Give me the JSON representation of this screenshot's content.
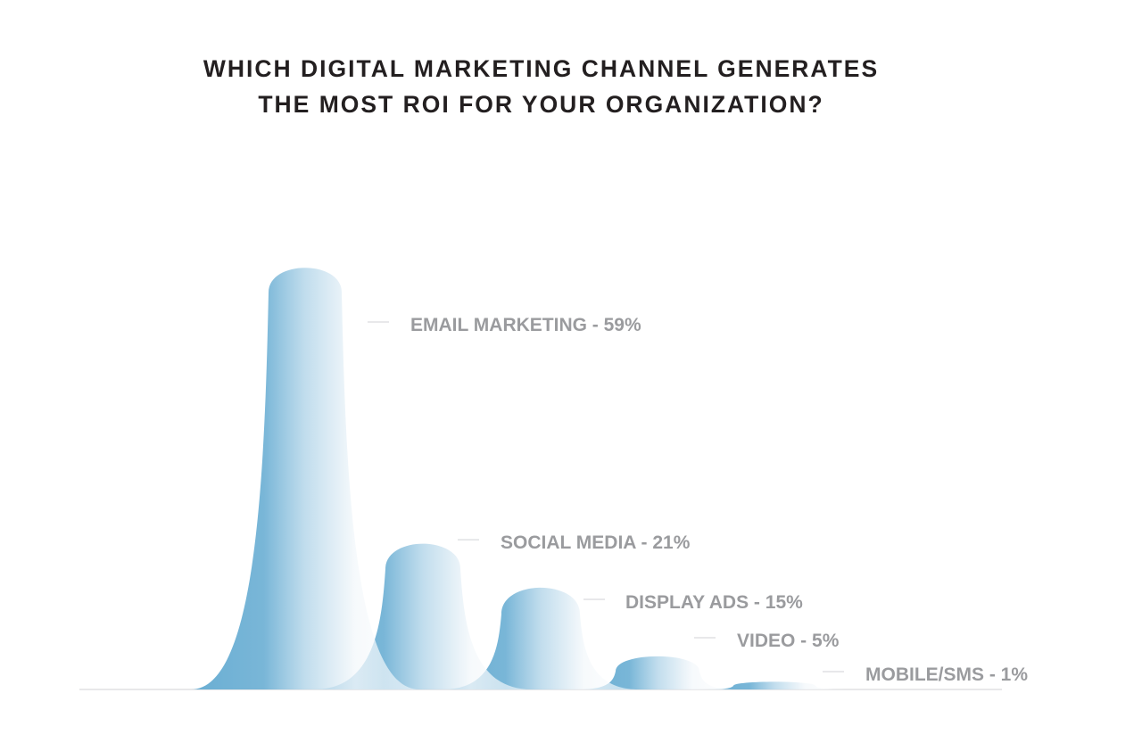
{
  "title": {
    "line1": "WHICH DIGITAL MARKETING CHANNEL GENERATES",
    "line2": "THE MOST ROI FOR YOUR ORGANIZATION?"
  },
  "colors": {
    "peak_dark": "#6aaed3",
    "peak_mid": "#b6d7ea",
    "peak_light": "#f4f8fb",
    "label": "#9a9b9e",
    "title": "#231f20",
    "baseline": "#d9dbdd",
    "leader": "#d9dbdd"
  },
  "chart_data": {
    "type": "bar",
    "title": "WHICH DIGITAL MARKETING CHANNEL GENERATES THE MOST ROI FOR YOUR ORGANIZATION?",
    "categories": [
      "EMAIL MARKETING",
      "SOCIAL MEDIA",
      "DISPLAY ADS",
      "VIDEO",
      "MOBILE/SMS"
    ],
    "values": [
      59,
      21,
      15,
      5,
      1
    ],
    "unit": "%",
    "labels": [
      "EMAIL MARKETING - 59%",
      "SOCIAL MEDIA - 21%",
      "DISPLAY ADS - 15%",
      "VIDEO - 5%",
      "MOBILE/SMS - 1%"
    ],
    "xlabel": "",
    "ylabel": "",
    "ylim": [
      0,
      59
    ],
    "grid": false,
    "legend": "none"
  }
}
